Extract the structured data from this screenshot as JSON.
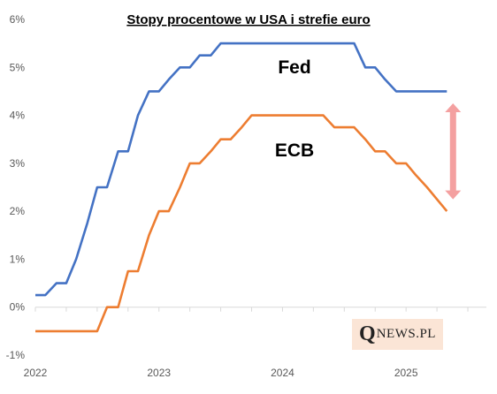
{
  "chart_data": {
    "type": "line",
    "title": "Stopy procentowe w USA i strefie euro",
    "xlabel": "",
    "ylabel": "",
    "ylim": [
      -1,
      6
    ],
    "xlim": [
      2022.0,
      2025.65
    ],
    "grid": false,
    "y_ticks": [
      {
        "value": 6,
        "label": "6%"
      },
      {
        "value": 5,
        "label": "5%"
      },
      {
        "value": 4,
        "label": "4%"
      },
      {
        "value": 3,
        "label": "3%"
      },
      {
        "value": 2,
        "label": "2%"
      },
      {
        "value": 1,
        "label": "1%"
      },
      {
        "value": 0,
        "label": "0%"
      },
      {
        "value": -1,
        "label": "-1%"
      }
    ],
    "x_ticks": [
      {
        "value": 2022,
        "label": "2022"
      },
      {
        "value": 2023,
        "label": "2023"
      },
      {
        "value": 2024,
        "label": "2024"
      },
      {
        "value": 2025,
        "label": "2025"
      }
    ],
    "series": [
      {
        "name": "Fed",
        "color": "#4472c4",
        "points": [
          [
            2022.0,
            0.25
          ],
          [
            2022.08,
            0.25
          ],
          [
            2022.17,
            0.5
          ],
          [
            2022.25,
            0.5
          ],
          [
            2022.33,
            1.0
          ],
          [
            2022.42,
            1.75
          ],
          [
            2022.5,
            2.5
          ],
          [
            2022.58,
            2.5
          ],
          [
            2022.67,
            3.25
          ],
          [
            2022.75,
            3.25
          ],
          [
            2022.83,
            4.0
          ],
          [
            2022.92,
            4.5
          ],
          [
            2023.0,
            4.5
          ],
          [
            2023.08,
            4.75
          ],
          [
            2023.17,
            5.0
          ],
          [
            2023.25,
            5.0
          ],
          [
            2023.33,
            5.25
          ],
          [
            2023.42,
            5.25
          ],
          [
            2023.5,
            5.5
          ],
          [
            2023.58,
            5.5
          ],
          [
            2023.67,
            5.5
          ],
          [
            2023.75,
            5.5
          ],
          [
            2023.83,
            5.5
          ],
          [
            2023.92,
            5.5
          ],
          [
            2024.0,
            5.5
          ],
          [
            2024.08,
            5.5
          ],
          [
            2024.17,
            5.5
          ],
          [
            2024.25,
            5.5
          ],
          [
            2024.33,
            5.5
          ],
          [
            2024.42,
            5.5
          ],
          [
            2024.5,
            5.5
          ],
          [
            2024.58,
            5.5
          ],
          [
            2024.67,
            5.0
          ],
          [
            2024.75,
            5.0
          ],
          [
            2024.83,
            4.75
          ],
          [
            2024.92,
            4.5
          ],
          [
            2025.0,
            4.5
          ],
          [
            2025.08,
            4.5
          ],
          [
            2025.17,
            4.5
          ],
          [
            2025.25,
            4.5
          ],
          [
            2025.33,
            4.5
          ]
        ]
      },
      {
        "name": "ECB",
        "color": "#ed7d31",
        "points": [
          [
            2022.0,
            -0.5
          ],
          [
            2022.08,
            -0.5
          ],
          [
            2022.17,
            -0.5
          ],
          [
            2022.25,
            -0.5
          ],
          [
            2022.33,
            -0.5
          ],
          [
            2022.42,
            -0.5
          ],
          [
            2022.5,
            -0.5
          ],
          [
            2022.58,
            0.0
          ],
          [
            2022.67,
            0.0
          ],
          [
            2022.75,
            0.75
          ],
          [
            2022.83,
            0.75
          ],
          [
            2022.92,
            1.5
          ],
          [
            2023.0,
            2.0
          ],
          [
            2023.08,
            2.0
          ],
          [
            2023.17,
            2.5
          ],
          [
            2023.25,
            3.0
          ],
          [
            2023.33,
            3.0
          ],
          [
            2023.42,
            3.25
          ],
          [
            2023.5,
            3.5
          ],
          [
            2023.58,
            3.5
          ],
          [
            2023.67,
            3.75
          ],
          [
            2023.75,
            4.0
          ],
          [
            2023.83,
            4.0
          ],
          [
            2023.92,
            4.0
          ],
          [
            2024.0,
            4.0
          ],
          [
            2024.08,
            4.0
          ],
          [
            2024.17,
            4.0
          ],
          [
            2024.25,
            4.0
          ],
          [
            2024.33,
            4.0
          ],
          [
            2024.42,
            3.75
          ],
          [
            2024.5,
            3.75
          ],
          [
            2024.58,
            3.75
          ],
          [
            2024.67,
            3.5
          ],
          [
            2024.75,
            3.25
          ],
          [
            2024.83,
            3.25
          ],
          [
            2024.92,
            3.0
          ],
          [
            2025.0,
            3.0
          ],
          [
            2025.08,
            2.75
          ],
          [
            2025.17,
            2.5
          ],
          [
            2025.25,
            2.25
          ],
          [
            2025.33,
            2.0
          ]
        ]
      }
    ],
    "annotations": {
      "fed_label": "Fed",
      "ecb_label": "ECB",
      "gap_arrow": {
        "x": 2025.38,
        "from": 2.25,
        "to": 4.25,
        "color": "#f4a0a0"
      }
    }
  },
  "logo": {
    "q": "Q",
    "rest": "NEWS.PL"
  }
}
